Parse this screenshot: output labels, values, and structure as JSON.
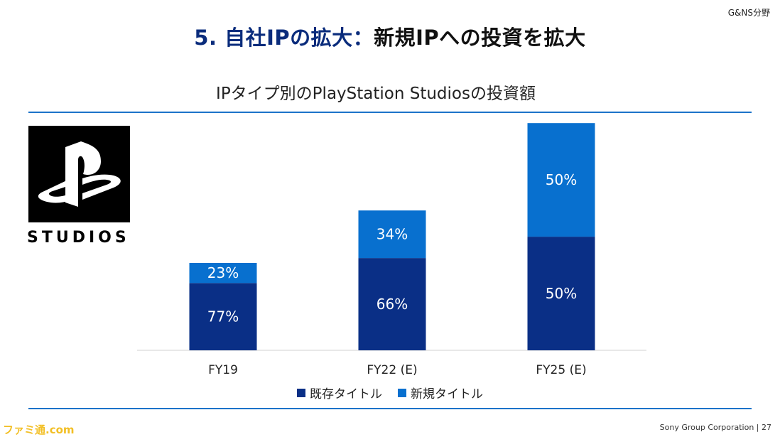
{
  "header": {
    "segment": "G&NS分野",
    "title_number": "5. 自社IPの拡大：",
    "title_rest": "新規IPへの投資を拡大"
  },
  "logo": {
    "wordmark": "STUDIOS"
  },
  "chart_data": {
    "type": "bar",
    "stacked": true,
    "title": "IPタイプ別のPlayStation Studiosの投資額",
    "categories": [
      "FY19",
      "FY22 (E)",
      "FY25 (E)"
    ],
    "series": [
      {
        "name": "既存タイトル",
        "color": "#0a2f86",
        "values": [
          77,
          66,
          50
        ],
        "labels": [
          "77%",
          "66%",
          "50%"
        ]
      },
      {
        "name": "新規タイトル",
        "color": "#0870cf",
        "values": [
          23,
          34,
          50
        ],
        "labels": [
          "23%",
          "34%",
          "50%"
        ]
      }
    ],
    "relative_totals": [
      1.0,
      1.6,
      2.6
    ],
    "grid": false,
    "legend_position": "bottom"
  },
  "footer": {
    "company": "Sony Group Corporation | 27"
  },
  "watermark": "ファミ通.com"
}
